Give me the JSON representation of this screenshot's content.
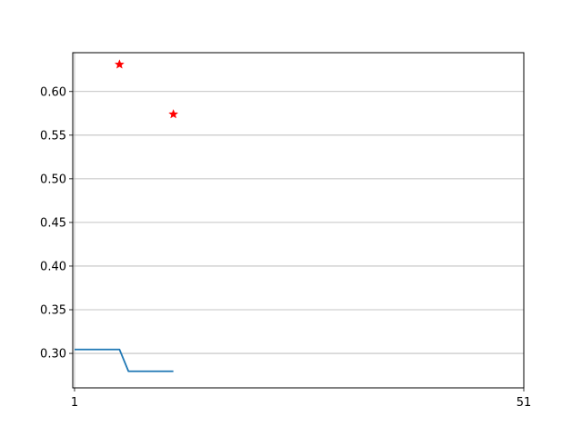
{
  "chart_data": {
    "type": "line",
    "title": "",
    "xlabel": "",
    "ylabel": "",
    "xlim": [
      0.8,
      51
    ],
    "ylim": [
      0.2605,
      0.6445
    ],
    "grid": {
      "x": false,
      "y": true
    },
    "x_ticks": [
      1,
      51
    ],
    "y_ticks": [
      0.3,
      0.35,
      0.4,
      0.45,
      0.5,
      0.55,
      0.6
    ],
    "y_tick_format": 2,
    "series": [
      {
        "kind": "line",
        "color": "#1f77b4",
        "points": [
          [
            1,
            0.3045
          ],
          [
            6,
            0.3045
          ],
          [
            7,
            0.2795
          ],
          [
            12,
            0.2795
          ]
        ]
      },
      {
        "kind": "scatter",
        "marker": "star",
        "color": "#ff0000",
        "points": [
          [
            6,
            0.631
          ],
          [
            12,
            0.574
          ]
        ]
      }
    ]
  }
}
